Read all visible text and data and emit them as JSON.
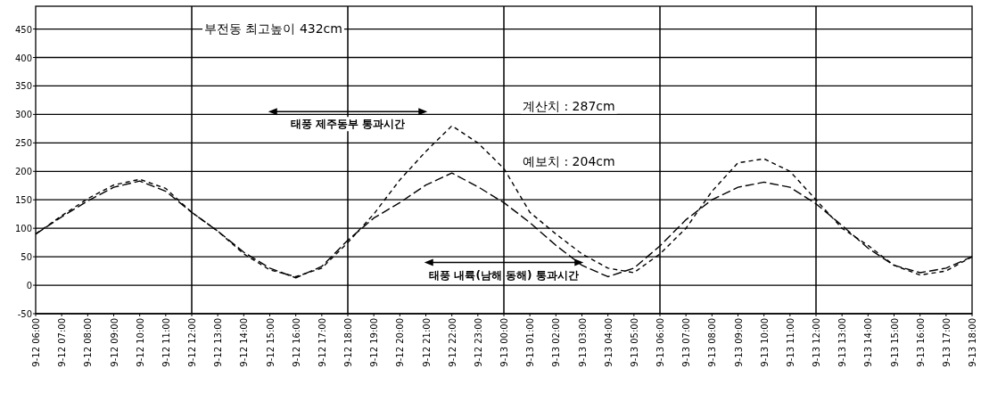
{
  "chart_data": {
    "type": "line",
    "categories": [
      "9-12 06:00",
      "9-12 07:00",
      "9-12 08:00",
      "9-12 09:00",
      "9-12 10:00",
      "9-12 11:00",
      "9-12 12:00",
      "9-12 13:00",
      "9-12 14:00",
      "9-12 15:00",
      "9-12 16:00",
      "9-12 17:00",
      "9-12 18:00",
      "9-12 19:00",
      "9-12 20:00",
      "9-12 21:00",
      "9-12 22:00",
      "9-12 23:00",
      "9-13 00:00",
      "9-13 01:00",
      "9-13 02:00",
      "9-13 03:00",
      "9-13 04:00",
      "9-13 05:00",
      "9-13 06:00",
      "9-13 07:00",
      "9-13 08:00",
      "9-13 09:00",
      "9-13 10:00",
      "9-13 11:00",
      "9-13 12:00",
      "9-13 13:00",
      "9-13 14:00",
      "9-13 15:00",
      "9-13 16:00",
      "9-13 17:00",
      "9-13 18:00"
    ],
    "series": [
      {
        "color": "#000000",
        "line_style": "dashed",
        "values": [
          90,
          120,
          148,
          172,
          183,
          165,
          128,
          95,
          58,
          30,
          13,
          33,
          79,
          118,
          145,
          176,
          197,
          173,
          145,
          110,
          70,
          35,
          15,
          30,
          69,
          115,
          150,
          172,
          181,
          172,
          143,
          105,
          65,
          35,
          22,
          30,
          50
        ]
      },
      {
        "color": "#000000",
        "line_style": "dashed",
        "values": [
          90,
          122,
          152,
          176,
          186,
          170,
          128,
          95,
          55,
          27,
          15,
          30,
          75,
          125,
          185,
          235,
          280,
          250,
          205,
          128,
          90,
          55,
          30,
          22,
          55,
          100,
          165,
          215,
          222,
          200,
          150,
          100,
          70,
          35,
          18,
          25,
          50
        ]
      }
    ],
    "ylim": [
      -50,
      490
    ],
    "yticks": [
      -50,
      0,
      50,
      100,
      150,
      200,
      250,
      300,
      350,
      400,
      450
    ],
    "grid": "y",
    "ref_lines": [
      {
        "axis": "x",
        "value": "9-12 12:00"
      },
      {
        "axis": "x",
        "value": "9-12 18:00"
      },
      {
        "axis": "x",
        "value": "9-13 00:00"
      },
      {
        "axis": "x",
        "value": "9-13 06:00"
      },
      {
        "axis": "x",
        "value": "9-13 12:00"
      }
    ],
    "annotations": [
      "부전동 최고높이 432cm",
      "계산치 : 287cm",
      "예보치 : 204cm",
      {
        "text": "태풍 제주동부 통과시간",
        "x": "9-12 18:00",
        "y": 305
      },
      {
        "text": "태풍 내륙(남해 동해) 통과시간",
        "x": "9-13 00:00",
        "y": 40
      }
    ]
  }
}
